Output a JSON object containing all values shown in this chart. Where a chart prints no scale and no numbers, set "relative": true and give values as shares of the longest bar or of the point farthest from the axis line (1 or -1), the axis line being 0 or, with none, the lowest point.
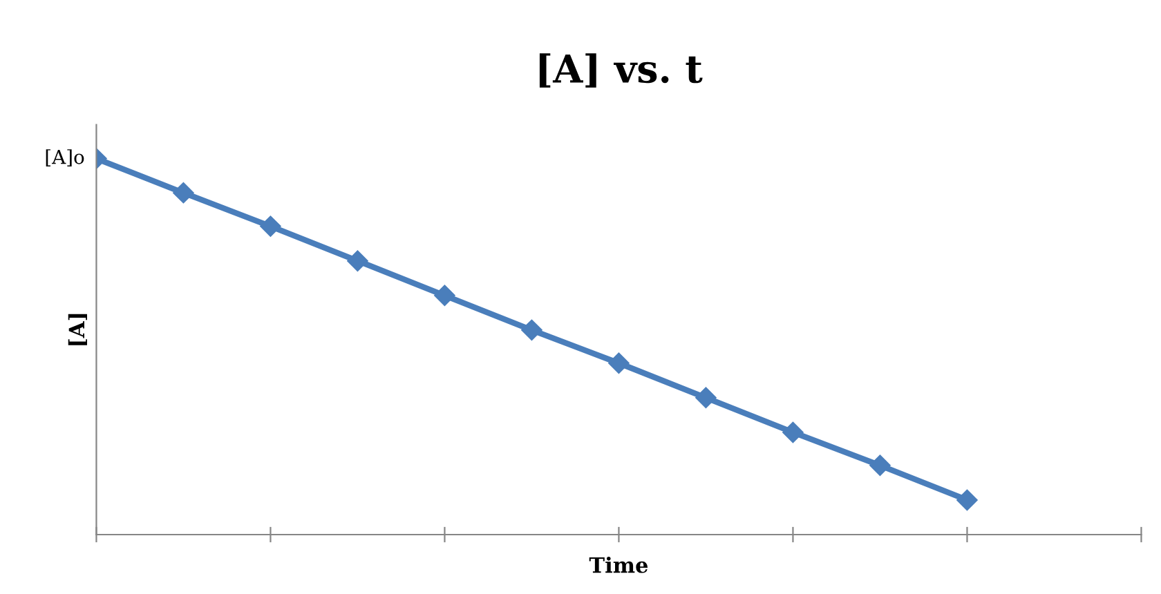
{
  "chart_data": {
    "type": "line",
    "title": "[A] vs. t",
    "xlabel": "Time",
    "ylabel": "[A]",
    "relative": true,
    "categories": [
      null,
      null,
      null,
      null,
      null,
      null,
      null,
      null,
      null,
      null,
      null
    ],
    "series": [
      {
        "color": "#4a7ebb",
        "values": [
          1,
          0.909,
          0.82,
          0.728,
          0.636,
          0.544,
          0.456,
          0.364,
          0.272,
          0.184,
          0.092
        ]
      }
    ],
    "annotations": [
      "[A]o"
    ],
    "marker": "diamond",
    "line_style": "solid",
    "grid": false,
    "legend": false
  }
}
